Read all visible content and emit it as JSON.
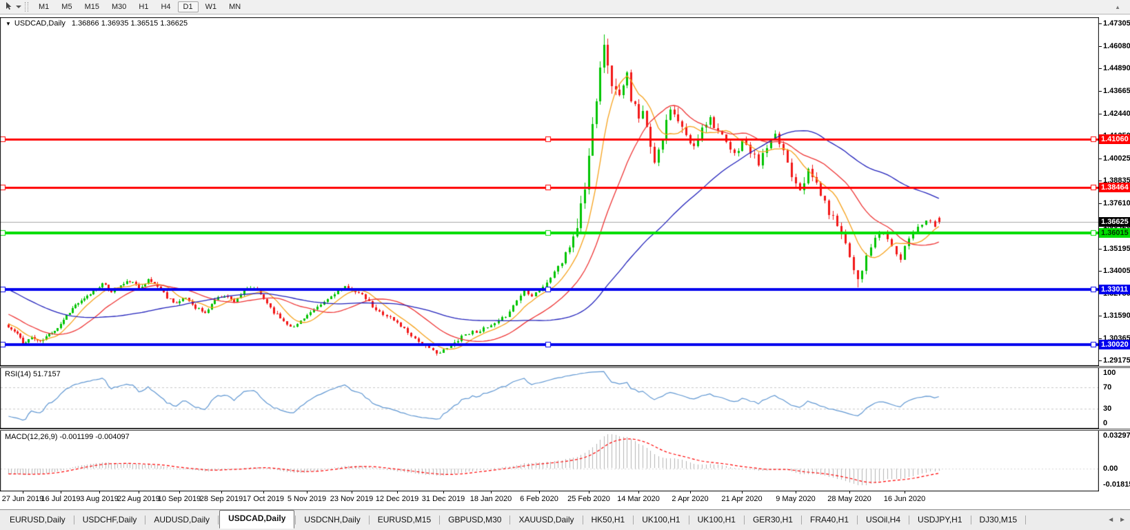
{
  "toolbar": {
    "timeframes": [
      "M1",
      "M5",
      "M15",
      "M30",
      "H1",
      "H4",
      "D1",
      "W1",
      "MN"
    ],
    "active_timeframe": "D1",
    "scroll_up_glyph": "▲"
  },
  "chart_header": {
    "collapse_glyph": "▼",
    "title": "USDCAD,Daily",
    "ohlc": "1.36866 1.36935 1.36515 1.36625"
  },
  "price_axis": {
    "ticks": [
      1.47305,
      1.4608,
      1.4489,
      1.43665,
      1.4244,
      1.4125,
      1.40025,
      1.38835,
      1.3761,
      1.3642,
      1.35195,
      1.34005,
      1.3278,
      1.3159,
      1.30365,
      1.29175
    ]
  },
  "price_markers": {
    "current": {
      "value": 1.36625,
      "label": "1.36625",
      "bg": "#000000",
      "fg": "#ffffff",
      "line_color": "#a8a8a8"
    },
    "hlines": [
      {
        "value": 1.4106,
        "label": "1.41060",
        "color": "#ff0000",
        "fg": "#ffffff",
        "lw": 3
      },
      {
        "value": 1.38464,
        "label": "1.38464",
        "color": "#ff0000",
        "fg": "#ffffff",
        "lw": 3
      },
      {
        "value": 1.36015,
        "label": "1.36015",
        "color": "#00dd00",
        "fg": "#003300",
        "lw": 4
      },
      {
        "value": 1.33011,
        "label": "1.33011",
        "color": "#0000ee",
        "fg": "#ffffff",
        "lw": 4
      },
      {
        "value": 1.3002,
        "label": "1.30020",
        "color": "#0000ee",
        "fg": "#ffffff",
        "lw": 4
      }
    ]
  },
  "rsi_panel": {
    "label": "RSI(14) 51.7157",
    "axis_values": [
      100,
      70,
      30,
      0
    ],
    "level_lines": [
      70,
      30
    ],
    "line_color": "#5e96d2"
  },
  "macd_panel": {
    "label": "MACD(12,26,9) -0.001199 -0.004097",
    "axis_labels": [
      "0.032972",
      "0.00",
      "-0.018154"
    ],
    "axis_values": [
      0.032972,
      0,
      -0.018154
    ],
    "hist_color": "#b4b4b4",
    "signal_color": "#ff0000"
  },
  "date_axis": {
    "labels": [
      "27 Jun 2019",
      "16 Jul 2019",
      "3 Aug 2019",
      "22 Aug 2019",
      "10 Sep 2019",
      "28 Sep 2019",
      "17 Oct 2019",
      "5 Nov 2019",
      "23 Nov 2019",
      "12 Dec 2019",
      "31 Dec 2019",
      "18 Jan 2020",
      "6 Feb 2020",
      "25 Feb 2020",
      "14 Mar 2020",
      "2 Apr 2020",
      "21 Apr 2020",
      "9 May 2020",
      "28 May 2020",
      "16 Jun 2020"
    ]
  },
  "tab_bar": {
    "tabs": [
      "EURUSD,Daily",
      "USDCHF,Daily",
      "AUDUSD,Daily",
      "USDCAD,Daily",
      "USDCNH,Daily",
      "EURUSD,M15",
      "GBPUSD,M30",
      "XAUUSD,Daily",
      "HK50,H1",
      "UK100,H1",
      "UK100,H1",
      "GER30,H1",
      "FRA40,H1",
      "USOil,H4",
      "USDJPY,H1",
      "DJ30,M15"
    ],
    "active_index": 3,
    "nav_left": "◄",
    "nav_right": "►"
  },
  "chart_data": {
    "type": "candlestick",
    "symbol": "USDCAD",
    "timeframe": "Daily",
    "candle_count": 261,
    "up_color": "#00c400",
    "down_color": "#f21717",
    "last_candle": {
      "open": 1.36866,
      "high": 1.36935,
      "low": 1.36515,
      "close": 1.36625
    },
    "y_ticks": [
      1.47305,
      1.4608,
      1.4489,
      1.43665,
      1.4244,
      1.4125,
      1.40025,
      1.38835,
      1.3761,
      1.3642,
      1.35195,
      1.34005,
      1.3278,
      1.3159,
      1.30365,
      1.29175
    ],
    "x_labels": [
      "27 Jun 2019",
      "16 Jul 2019",
      "3 Aug 2019",
      "22 Aug 2019",
      "10 Sep 2019",
      "28 Sep 2019",
      "17 Oct 2019",
      "5 Nov 2019",
      "23 Nov 2019",
      "12 Dec 2019",
      "31 Dec 2019",
      "18 Jan 2020",
      "6 Feb 2020",
      "25 Feb 2020",
      "14 Mar 2020",
      "2 Apr 2020",
      "21 Apr 2020",
      "9 May 2020",
      "28 May 2020",
      "16 Jun 2020"
    ],
    "horizontal_lines": [
      1.4106,
      1.38464,
      1.36015,
      1.33011,
      1.3002
    ],
    "close_keyframes": [
      [
        0,
        1.3095
      ],
      [
        3,
        1.306
      ],
      [
        5,
        1.3008
      ],
      [
        8,
        1.3042
      ],
      [
        11,
        1.3015
      ],
      [
        14,
        1.306
      ],
      [
        17,
        1.3095
      ],
      [
        20,
        1.316
      ],
      [
        23,
        1.3215
      ],
      [
        26,
        1.3245
      ],
      [
        29,
        1.329
      ],
      [
        32,
        1.333
      ],
      [
        35,
        1.329
      ],
      [
        38,
        1.332
      ],
      [
        41,
        1.3345
      ],
      [
        44,
        1.331
      ],
      [
        47,
        1.335
      ],
      [
        50,
        1.332
      ],
      [
        53,
        1.326
      ],
      [
        56,
        1.3225
      ],
      [
        59,
        1.3255
      ],
      [
        62,
        1.3205
      ],
      [
        65,
        1.317
      ],
      [
        68,
        1.3245
      ],
      [
        71,
        1.327
      ],
      [
        74,
        1.3235
      ],
      [
        77,
        1.329
      ],
      [
        80,
        1.331
      ],
      [
        83,
        1.325
      ],
      [
        86,
        1.318
      ],
      [
        89,
        1.313
      ],
      [
        92,
        1.3095
      ],
      [
        95,
        1.315
      ],
      [
        98,
        1.3185
      ],
      [
        101,
        1.323
      ],
      [
        104,
        1.328
      ],
      [
        107,
        1.331
      ],
      [
        110,
        1.329
      ],
      [
        113,
        1.325
      ],
      [
        116,
        1.3185
      ],
      [
        119,
        1.316
      ],
      [
        122,
        1.312
      ],
      [
        125,
        1.307
      ],
      [
        128,
        1.302
      ],
      [
        131,
        1.2975
      ],
      [
        134,
        1.2958
      ],
      [
        137,
        1.2995
      ],
      [
        140,
        1.305
      ],
      [
        143,
        1.307
      ],
      [
        146,
        1.3085
      ],
      [
        149,
        1.311
      ],
      [
        152,
        1.316
      ],
      [
        155,
        1.324
      ],
      [
        157,
        1.3295
      ],
      [
        159,
        1.327
      ],
      [
        161,
        1.33
      ],
      [
        163,
        1.333
      ],
      [
        165,
        1.34
      ],
      [
        167,
        1.3445
      ],
      [
        169,
        1.353
      ],
      [
        171,
        1.365
      ],
      [
        173,
        1.385
      ],
      [
        175,
        1.418
      ],
      [
        177,
        1.452
      ],
      [
        178,
        1.464
      ],
      [
        179,
        1.448
      ],
      [
        180,
        1.442
      ],
      [
        181,
        1.435
      ],
      [
        183,
        1.439
      ],
      [
        184,
        1.445
      ],
      [
        185,
        1.43
      ],
      [
        186,
        1.428
      ],
      [
        187,
        1.424
      ],
      [
        188,
        1.428
      ],
      [
        189,
        1.416
      ],
      [
        190,
        1.408
      ],
      [
        191,
        1.4
      ],
      [
        193,
        1.412
      ],
      [
        195,
        1.426
      ],
      [
        197,
        1.42
      ],
      [
        199,
        1.412
      ],
      [
        201,
        1.406
      ],
      [
        203,
        1.418
      ],
      [
        205,
        1.422
      ],
      [
        207,
        1.415
      ],
      [
        209,
        1.408
      ],
      [
        211,
        1.402
      ],
      [
        213,
        1.41
      ],
      [
        215,
        1.404
      ],
      [
        217,
        1.398
      ],
      [
        219,
        1.406
      ],
      [
        221,
        1.412
      ],
      [
        223,
        1.405
      ],
      [
        225,
        1.392
      ],
      [
        227,
        1.385
      ],
      [
        229,
        1.393
      ],
      [
        231,
        1.387
      ],
      [
        233,
        1.376
      ],
      [
        235,
        1.368
      ],
      [
        237,
        1.362
      ],
      [
        239,
        1.348
      ],
      [
        241,
        1.336
      ],
      [
        243,
        1.347
      ],
      [
        245,
        1.358
      ],
      [
        247,
        1.361
      ],
      [
        249,
        1.353
      ],
      [
        251,
        1.346
      ],
      [
        253,
        1.358
      ],
      [
        255,
        1.364
      ],
      [
        257,
        1.3675
      ],
      [
        259,
        1.365
      ],
      [
        260,
        1.36625
      ]
    ],
    "volatility_zones": [
      [
        0,
        160,
        0.0022
      ],
      [
        160,
        170,
        0.0035
      ],
      [
        170,
        183,
        0.0095
      ],
      [
        183,
        200,
        0.0065
      ],
      [
        200,
        223,
        0.0045
      ],
      [
        223,
        243,
        0.0055
      ],
      [
        243,
        261,
        0.0032
      ]
    ],
    "peak": {
      "high": 1.4672
    },
    "trough": {
      "low": 1.3312
    },
    "moving_averages": [
      {
        "period": 8,
        "color": "#f7a21b"
      },
      {
        "period": 21,
        "color": "#ef3434"
      },
      {
        "period": 55,
        "color": "#2020bb"
      }
    ],
    "indicators": {
      "rsi": {
        "period": 14,
        "last": 51.7157
      },
      "macd": {
        "fast": 12,
        "slow": 26,
        "signal": 9,
        "last_main": -0.001199,
        "last_signal": -0.004097,
        "scale_max": 0.032972,
        "scale_min": -0.018154
      }
    },
    "pre_history": {
      "bars": 60,
      "from": 1.356
    }
  }
}
